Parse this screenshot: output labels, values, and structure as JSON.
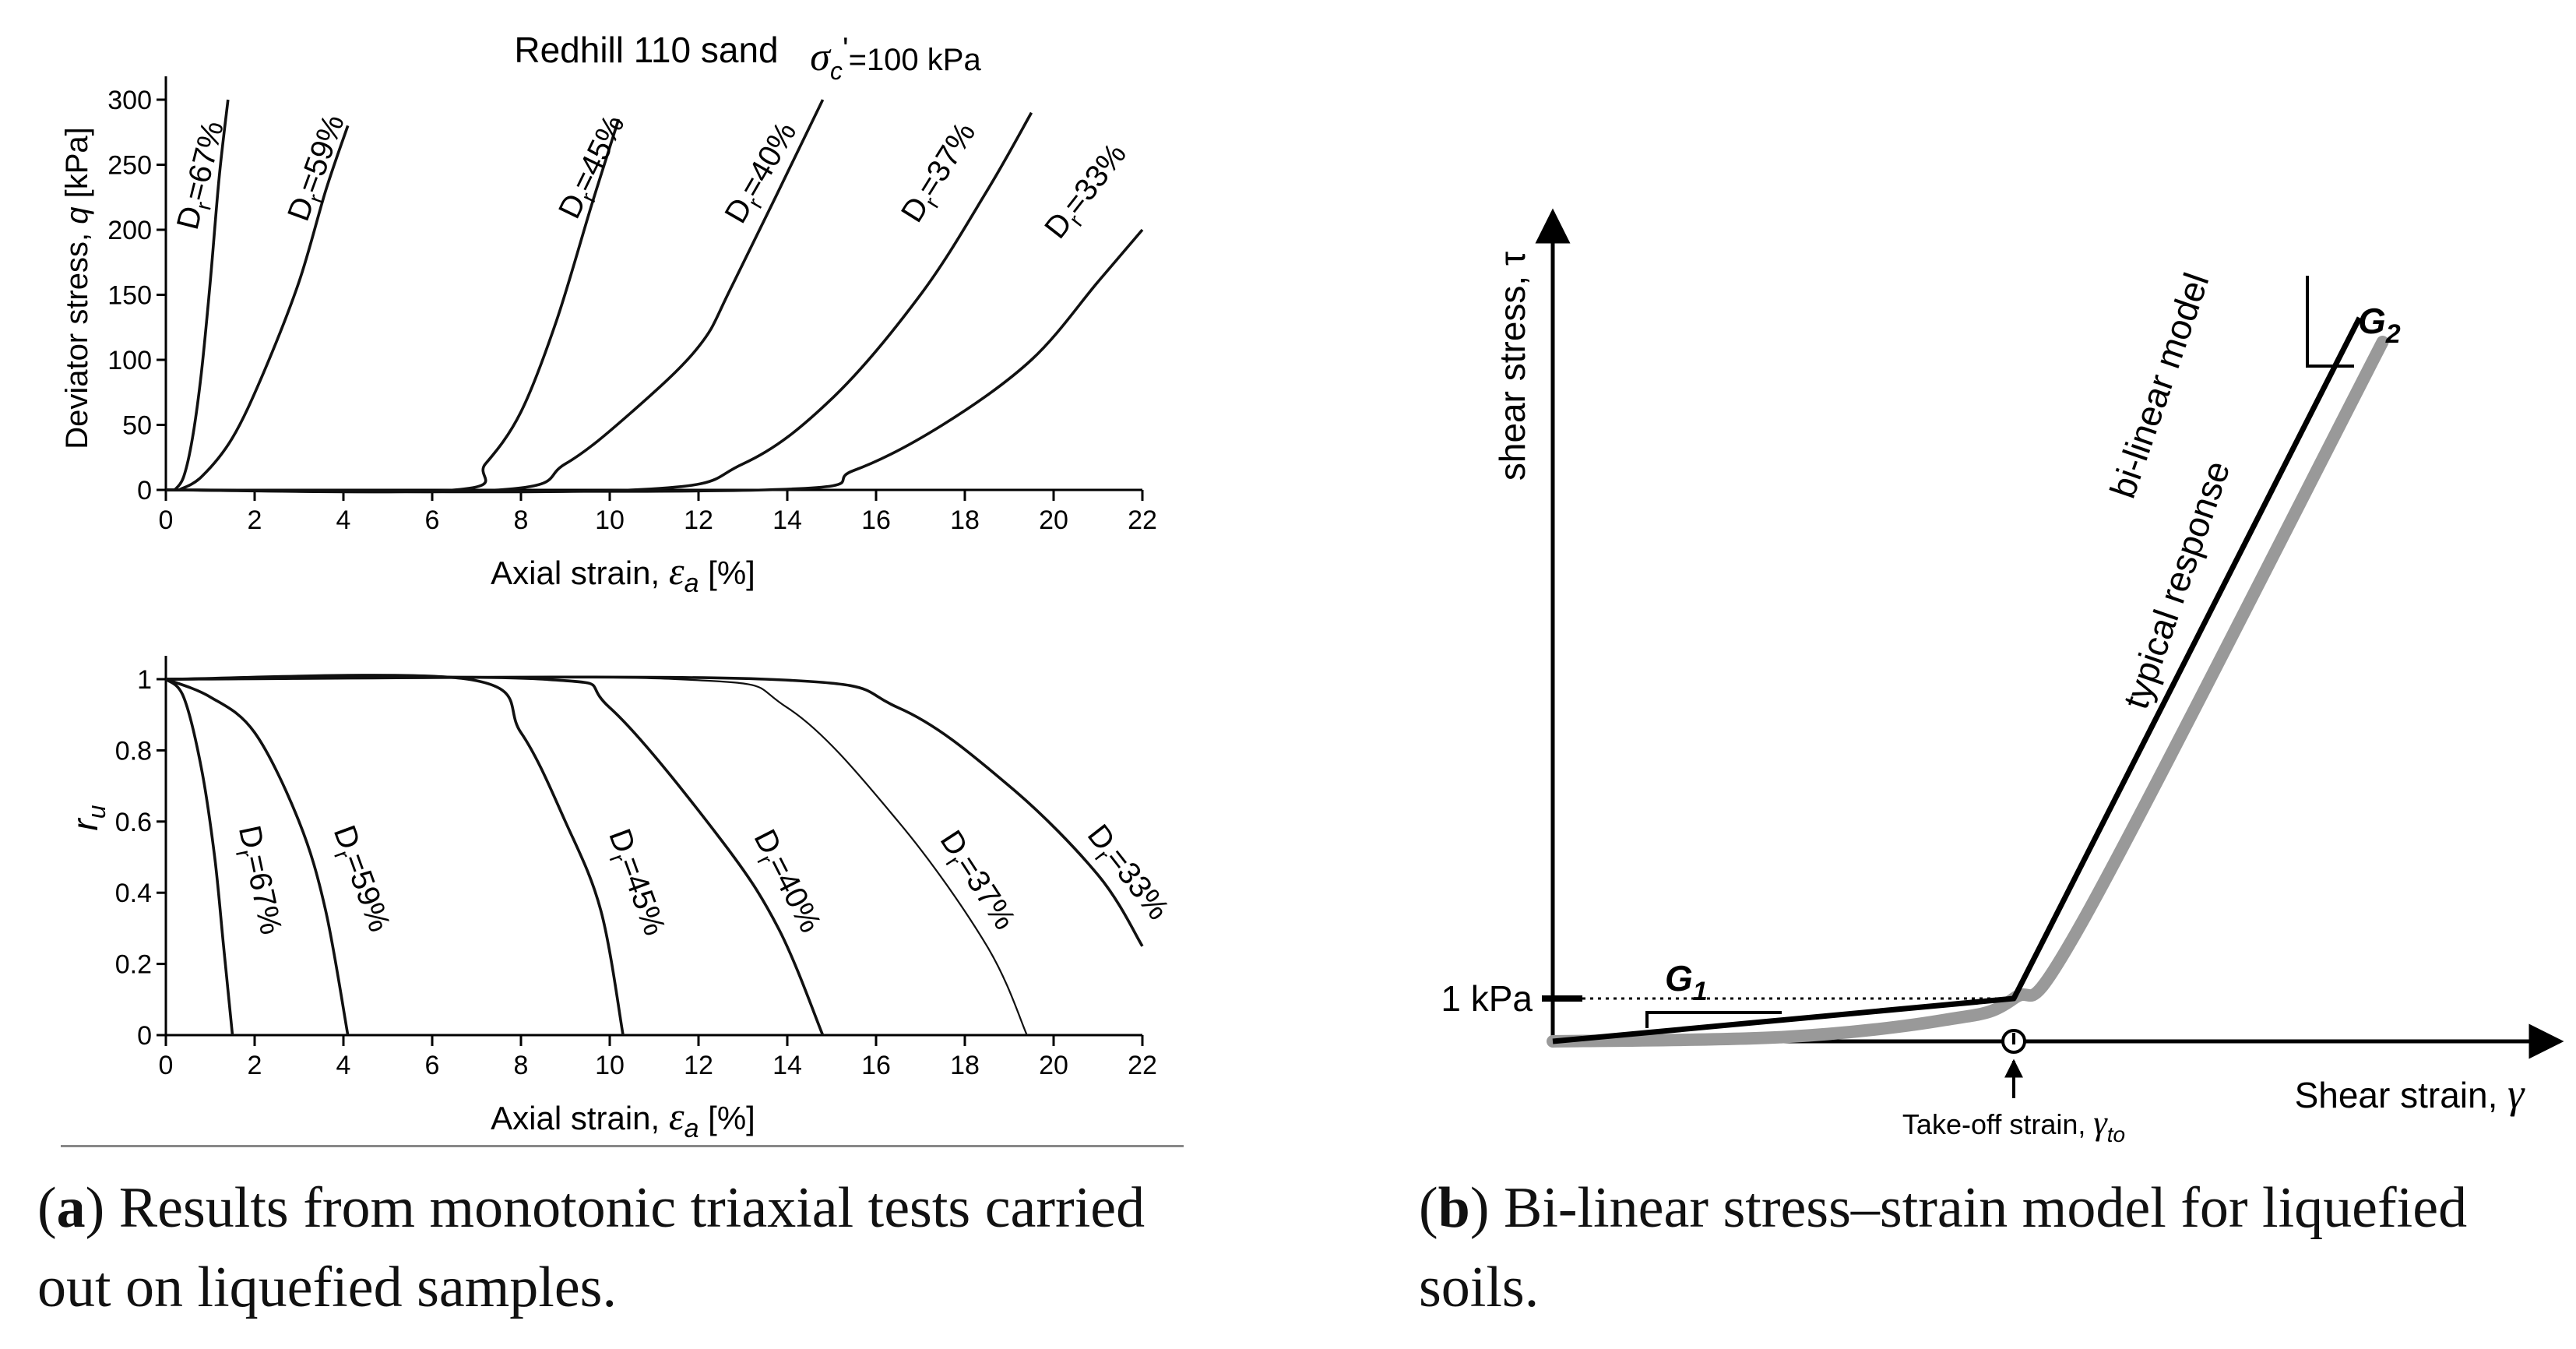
{
  "panel_a": {
    "caption_letter": "a",
    "caption_text": ") Results from monotonic triaxial tests car­ried out on liquefied samples."
  },
  "panel_b": {
    "caption_letter": "b",
    "caption_text": ") Bi-linear stress–strain model for liquefied soils."
  },
  "chart_data": [
    {
      "type": "line",
      "title": "Redhill 110 sand",
      "subtitle": "σ'c=100 kPa",
      "xlabel": "Axial strain, εa [%]",
      "ylabel": "Deviator stress, q [kPa]",
      "xlim": [
        0,
        22
      ],
      "ylim": [
        0,
        300
      ],
      "xticks": [
        0,
        2,
        4,
        6,
        8,
        10,
        12,
        14,
        16,
        18,
        20,
        22
      ],
      "yticks": [
        0,
        50,
        100,
        150,
        200,
        250,
        300
      ],
      "series": [
        {
          "name": "Dr=67%",
          "x": [
            0.2,
            0.4,
            0.6,
            0.8,
            1.0,
            1.2,
            1.4
          ],
          "y": [
            0,
            10,
            40,
            90,
            160,
            240,
            300
          ]
        },
        {
          "name": "Dr=59%",
          "x": [
            0.3,
            0.8,
            1.5,
            2.2,
            3.0,
            3.6,
            4.1
          ],
          "y": [
            0,
            10,
            40,
            90,
            160,
            230,
            280
          ]
        },
        {
          "name": "Dr=45%",
          "x": [
            0,
            6.5,
            7.2,
            8.0,
            8.8,
            9.6,
            10.2
          ],
          "y": [
            0,
            0,
            20,
            60,
            130,
            220,
            285
          ]
        },
        {
          "name": "Dr=40%",
          "x": [
            0,
            7.5,
            9.0,
            10.5,
            12.0,
            12.8,
            14.8
          ],
          "y": [
            0,
            0,
            20,
            60,
            110,
            160,
            300
          ]
        },
        {
          "name": "Dr=37%",
          "x": [
            0,
            10.5,
            13.0,
            15.0,
            17.0,
            18.5,
            19.5
          ],
          "y": [
            0,
            0,
            20,
            70,
            150,
            230,
            290
          ]
        },
        {
          "name": "Dr=33%",
          "x": [
            0,
            13.5,
            15.5,
            17.5,
            19.5,
            21.0,
            22.0
          ],
          "y": [
            0,
            0,
            15,
            50,
            100,
            160,
            200
          ]
        }
      ]
    },
    {
      "type": "line",
      "title": "",
      "xlabel": "Axial strain, εa [%]",
      "ylabel": "ru",
      "xlim": [
        0,
        22
      ],
      "ylim": [
        0,
        1
      ],
      "xticks": [
        0,
        2,
        4,
        6,
        8,
        10,
        12,
        14,
        16,
        18,
        20,
        22
      ],
      "yticks": [
        0,
        0.2,
        0.4,
        0.6,
        0.8,
        1
      ],
      "series": [
        {
          "name": "Dr=67%",
          "x": [
            0,
            0.4,
            0.8,
            1.1,
            1.3,
            1.5
          ],
          "y": [
            1,
            0.95,
            0.75,
            0.5,
            0.25,
            0
          ]
        },
        {
          "name": "Dr=59%",
          "x": [
            0,
            1.0,
            2.0,
            3.0,
            3.6,
            4.1
          ],
          "y": [
            1,
            0.95,
            0.85,
            0.6,
            0.35,
            0
          ]
        },
        {
          "name": "Dr=45%",
          "x": [
            0,
            6.8,
            8.0,
            9.0,
            9.8,
            10.3
          ],
          "y": [
            1,
            1,
            0.85,
            0.6,
            0.35,
            0
          ]
        },
        {
          "name": "Dr=40%",
          "x": [
            0,
            8.5,
            10.0,
            12.5,
            13.8,
            14.8
          ],
          "y": [
            1,
            1,
            0.92,
            0.55,
            0.3,
            0
          ]
        },
        {
          "name": "Dr=37%",
          "x": [
            0,
            11.5,
            14.0,
            16.5,
            18.5,
            19.4
          ],
          "y": [
            1,
            1,
            0.92,
            0.6,
            0.25,
            0
          ]
        },
        {
          "name": "Dr=33%",
          "x": [
            0,
            13.5,
            16.5,
            19.0,
            21.0,
            22.0
          ],
          "y": [
            1,
            1,
            0.92,
            0.7,
            0.45,
            0.25
          ]
        }
      ]
    },
    {
      "type": "line",
      "title": "",
      "xlabel": "Shear strain, γ",
      "ylabel": "shear stress, τ",
      "y_marker_label": "1 kPa",
      "x_marker_label": "Take-off strain, γto",
      "slope_labels": [
        "G1",
        "G2"
      ],
      "series": [
        {
          "name": "bi-linear model",
          "points": [
            [
              0,
              0
            ],
            [
              1,
              1
            ],
            [
              1.75,
              15
            ]
          ]
        },
        {
          "name": "typical response",
          "points": [
            [
              0,
              0
            ],
            [
              0.5,
              0.1
            ],
            [
              0.85,
              0.5
            ],
            [
              1.0,
              1.0
            ],
            [
              1.15,
              2.5
            ],
            [
              1.8,
              14.5
            ]
          ]
        }
      ]
    }
  ]
}
